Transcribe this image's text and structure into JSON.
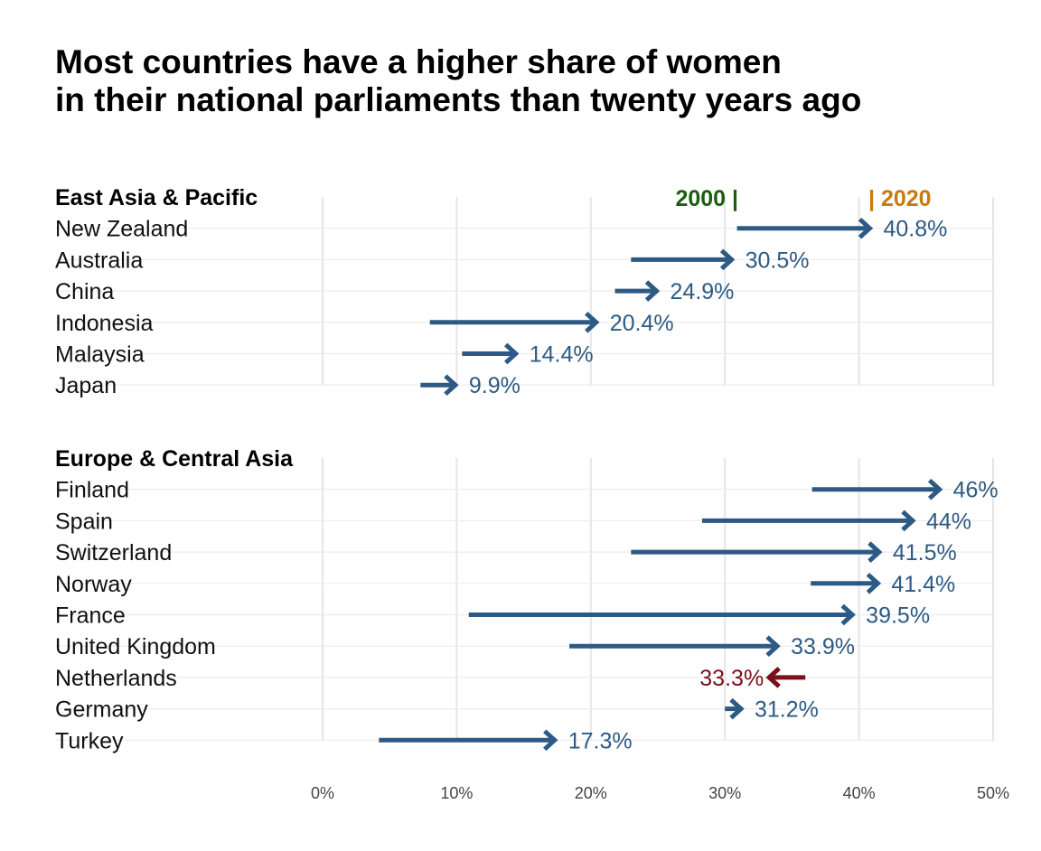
{
  "chart_data": {
    "type": "arrow-dumbbell",
    "title": [
      "Most countries have a higher share of women",
      "in their national parliaments than twenty years ago"
    ],
    "xlabel": "",
    "ylabel": "",
    "xlim": [
      0,
      50
    ],
    "x_ticks": [
      "0%",
      "10%",
      "20%",
      "30%",
      "40%",
      "50%"
    ],
    "x_tick_values": [
      0,
      10,
      20,
      30,
      40,
      50
    ],
    "grid": true,
    "legend": {
      "start_label": "2000 |",
      "end_label": "| 2020",
      "start_color": "#1a5e0e",
      "end_color": "#c77a0f"
    },
    "colors": {
      "increase": "#2d5a84",
      "decrease": "#7a1019"
    },
    "groups": [
      {
        "name": "East Asia & Pacific",
        "rows": [
          {
            "country": "New Zealand",
            "y2000": 30.9,
            "y2020": 40.8,
            "label": "40.8%"
          },
          {
            "country": "Australia",
            "y2000": 23.0,
            "y2020": 30.5,
            "label": "30.5%"
          },
          {
            "country": "China",
            "y2000": 21.8,
            "y2020": 24.9,
            "label": "24.9%"
          },
          {
            "country": "Indonesia",
            "y2000": 8.0,
            "y2020": 20.4,
            "label": "20.4%"
          },
          {
            "country": "Malaysia",
            "y2000": 10.4,
            "y2020": 14.4,
            "label": "14.4%"
          },
          {
            "country": "Japan",
            "y2000": 7.3,
            "y2020": 9.9,
            "label": "9.9%"
          }
        ]
      },
      {
        "name": "Europe & Central Asia",
        "rows": [
          {
            "country": "Finland",
            "y2000": 36.5,
            "y2020": 46.0,
            "label": "46%"
          },
          {
            "country": "Spain",
            "y2000": 28.3,
            "y2020": 44.0,
            "label": "44%"
          },
          {
            "country": "Switzerland",
            "y2000": 23.0,
            "y2020": 41.5,
            "label": "41.5%"
          },
          {
            "country": "Norway",
            "y2000": 36.4,
            "y2020": 41.4,
            "label": "41.4%"
          },
          {
            "country": "France",
            "y2000": 10.9,
            "y2020": 39.5,
            "label": "39.5%"
          },
          {
            "country": "United Kingdom",
            "y2000": 18.4,
            "y2020": 33.9,
            "label": "33.9%"
          },
          {
            "country": "Netherlands",
            "y2000": 36.0,
            "y2020": 33.3,
            "label": "33.3%"
          },
          {
            "country": "Germany",
            "y2000": 30.0,
            "y2020": 31.2,
            "label": "31.2%"
          },
          {
            "country": "Turkey",
            "y2000": 4.2,
            "y2020": 17.3,
            "label": "17.3%"
          }
        ]
      }
    ]
  }
}
